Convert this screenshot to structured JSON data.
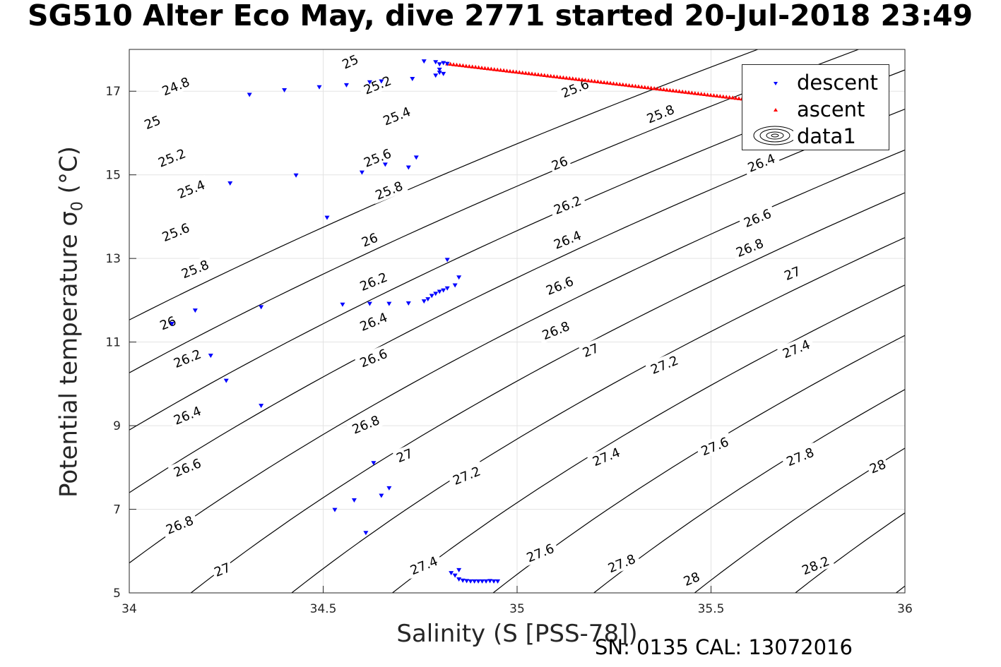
{
  "title": "SG510 Alter Eco May, dive 2771 started 20-Jul-2018 23:49",
  "footer": "SN: 0135  CAL: 13072016",
  "colors": {
    "descent": "#0000ff",
    "ascent": "#ff0000",
    "contour": "#000000",
    "grid": "#e3e3e3"
  },
  "chart_data": {
    "type": "scatter",
    "title": "SG510 Alter Eco May, dive 2771 started 20-Jul-2018 23:49",
    "xlabel": "Salinity (S [PSS-78])",
    "ylabel": "Potential temperature σ",
    "ylabel_subscript": "0",
    "ylabel_unit": "(°C)",
    "xlim": [
      34,
      36
    ],
    "ylim": [
      5,
      18
    ],
    "xticks": [
      "34",
      "34.5",
      "35",
      "35.5",
      "36"
    ],
    "yticks": [
      "5",
      "7",
      "9",
      "11",
      "13",
      "15",
      "17"
    ],
    "grid": true,
    "legend_position": "top-right",
    "legend": [
      "descent",
      "ascent",
      "data1"
    ],
    "series": [
      {
        "name": "descent",
        "marker": "downward-triangle",
        "color": "#0000ff",
        "points": [
          [
            34.79,
            17.7
          ],
          [
            34.81,
            17.68
          ],
          [
            34.82,
            17.66
          ],
          [
            34.76,
            17.72
          ],
          [
            34.8,
            17.65
          ],
          [
            34.8,
            17.52
          ],
          [
            34.8,
            17.45
          ],
          [
            34.79,
            17.38
          ],
          [
            34.81,
            17.42
          ],
          [
            34.73,
            17.3
          ],
          [
            34.65,
            17.24
          ],
          [
            34.62,
            17.22
          ],
          [
            34.56,
            17.15
          ],
          [
            34.49,
            17.1
          ],
          [
            34.4,
            17.03
          ],
          [
            34.31,
            16.92
          ],
          [
            34.74,
            15.42
          ],
          [
            34.66,
            15.25
          ],
          [
            34.72,
            15.18
          ],
          [
            34.6,
            15.06
          ],
          [
            34.43,
            14.99
          ],
          [
            34.26,
            14.8
          ],
          [
            34.51,
            13.98
          ],
          [
            34.82,
            12.97
          ],
          [
            34.85,
            12.55
          ],
          [
            34.84,
            12.36
          ],
          [
            34.82,
            12.29
          ],
          [
            34.81,
            12.24
          ],
          [
            34.8,
            12.21
          ],
          [
            34.79,
            12.16
          ],
          [
            34.78,
            12.11
          ],
          [
            34.77,
            12.03
          ],
          [
            34.76,
            11.98
          ],
          [
            34.72,
            11.93
          ],
          [
            34.67,
            11.92
          ],
          [
            34.62,
            11.92
          ],
          [
            34.55,
            11.9
          ],
          [
            34.34,
            11.84
          ],
          [
            34.17,
            11.76
          ],
          [
            34.11,
            11.44
          ],
          [
            34.21,
            10.68
          ],
          [
            34.25,
            10.08
          ],
          [
            34.34,
            9.48
          ],
          [
            34.63,
            8.11
          ],
          [
            34.67,
            7.51
          ],
          [
            34.65,
            7.33
          ],
          [
            34.58,
            7.22
          ],
          [
            34.53,
            6.99
          ],
          [
            34.61,
            6.44
          ],
          [
            34.85,
            5.55
          ],
          [
            34.83,
            5.48
          ],
          [
            34.84,
            5.42
          ],
          [
            34.85,
            5.33
          ],
          [
            34.86,
            5.3
          ],
          [
            34.87,
            5.29
          ],
          [
            34.88,
            5.28
          ],
          [
            34.89,
            5.28
          ],
          [
            34.9,
            5.28
          ],
          [
            34.91,
            5.28
          ],
          [
            34.92,
            5.28
          ],
          [
            34.93,
            5.29
          ],
          [
            34.94,
            5.28
          ],
          [
            34.95,
            5.28
          ]
        ]
      },
      {
        "name": "ascent",
        "marker": "upward-triangle",
        "color": "#ff0000",
        "x_range": [
          34.82,
          35.58
        ],
        "y_range": [
          17.66,
          16.82
        ],
        "count": 95
      },
      {
        "name": "data1",
        "type": "contour",
        "color": "#000000",
        "levels": [
          24.8,
          25,
          25.2,
          25.4,
          25.6,
          25.8,
          26,
          26.2,
          26.4,
          26.6,
          26.8,
          27,
          27.2,
          27.4,
          27.6,
          27.8,
          28,
          28.2
        ]
      }
    ],
    "contour_labels": [
      {
        "text": "25",
        "x": 34.57,
        "y": 17.7,
        "angle": -24
      },
      {
        "text": "24.8",
        "x": 34.12,
        "y": 17.11,
        "angle": -22
      },
      {
        "text": "25.2",
        "x": 34.64,
        "y": 17.14,
        "angle": -22
      },
      {
        "text": "25",
        "x": 34.06,
        "y": 16.25,
        "angle": -22
      },
      {
        "text": "25.4",
        "x": 34.69,
        "y": 16.4,
        "angle": -22
      },
      {
        "text": "25.6",
        "x": 35.15,
        "y": 17.06,
        "angle": -22
      },
      {
        "text": "25.8",
        "x": 35.37,
        "y": 16.45,
        "angle": -22
      },
      {
        "text": "25.2",
        "x": 34.11,
        "y": 15.4,
        "angle": -22
      },
      {
        "text": "25.6",
        "x": 34.64,
        "y": 15.4,
        "angle": -22
      },
      {
        "text": "25.8",
        "x": 34.67,
        "y": 14.62,
        "angle": -22
      },
      {
        "text": "26",
        "x": 35.11,
        "y": 15.27,
        "angle": -22
      },
      {
        "text": "26.2",
        "x": 35.13,
        "y": 14.27,
        "angle": -22
      },
      {
        "text": "26.4",
        "x": 35.63,
        "y": 15.28,
        "angle": -22
      },
      {
        "text": "25.4",
        "x": 34.16,
        "y": 14.65,
        "angle": -22
      },
      {
        "text": "26.6",
        "x": 35.62,
        "y": 13.96,
        "angle": -22
      },
      {
        "text": "25.6",
        "x": 34.12,
        "y": 13.62,
        "angle": -22
      },
      {
        "text": "26",
        "x": 34.62,
        "y": 13.44,
        "angle": -22
      },
      {
        "text": "26.4",
        "x": 35.13,
        "y": 13.44,
        "angle": -22
      },
      {
        "text": "26.8",
        "x": 35.6,
        "y": 13.25,
        "angle": -22
      },
      {
        "text": "25.8",
        "x": 34.17,
        "y": 12.74,
        "angle": -22
      },
      {
        "text": "26.2",
        "x": 34.63,
        "y": 12.44,
        "angle": -22
      },
      {
        "text": "26.6",
        "x": 35.11,
        "y": 12.34,
        "angle": -22
      },
      {
        "text": "27",
        "x": 35.71,
        "y": 12.64,
        "angle": -22
      },
      {
        "text": "27.2",
        "x": 36.0,
        "y": 12.27,
        "angle": -22
      },
      {
        "text": "26",
        "x": 34.1,
        "y": 11.45,
        "angle": -22
      },
      {
        "text": "26.4",
        "x": 34.63,
        "y": 11.48,
        "angle": -22
      },
      {
        "text": "26.8",
        "x": 35.1,
        "y": 11.27,
        "angle": -22
      },
      {
        "text": "26.2",
        "x": 34.15,
        "y": 10.6,
        "angle": -22
      },
      {
        "text": "26.6",
        "x": 34.63,
        "y": 10.61,
        "angle": -22
      },
      {
        "text": "27",
        "x": 35.19,
        "y": 10.8,
        "angle": -22
      },
      {
        "text": "27.2",
        "x": 35.38,
        "y": 10.45,
        "angle": -22
      },
      {
        "text": "27.4",
        "x": 35.72,
        "y": 10.83,
        "angle": -22
      },
      {
        "text": "26.4",
        "x": 34.15,
        "y": 9.24,
        "angle": -22
      },
      {
        "text": "26.8",
        "x": 34.61,
        "y": 9.02,
        "angle": -22
      },
      {
        "text": "27",
        "x": 34.71,
        "y": 8.28,
        "angle": -22
      },
      {
        "text": "27.6",
        "x": 35.51,
        "y": 8.5,
        "angle": -22
      },
      {
        "text": "27.8",
        "x": 35.73,
        "y": 8.25,
        "angle": -22
      },
      {
        "text": "28",
        "x": 35.93,
        "y": 8.02,
        "angle": -22
      },
      {
        "text": "27.4",
        "x": 35.23,
        "y": 8.25,
        "angle": -22
      },
      {
        "text": "26.6",
        "x": 34.15,
        "y": 7.99,
        "angle": -22
      },
      {
        "text": "27.2",
        "x": 34.87,
        "y": 7.8,
        "angle": -22
      },
      {
        "text": "26.8",
        "x": 34.13,
        "y": 6.62,
        "angle": -22
      },
      {
        "text": "27",
        "x": 34.24,
        "y": 5.55,
        "angle": -22
      },
      {
        "text": "27.4",
        "x": 34.76,
        "y": 5.65,
        "angle": -22
      },
      {
        "text": "27.6",
        "x": 35.06,
        "y": 5.95,
        "angle": -22
      },
      {
        "text": "27.8",
        "x": 35.27,
        "y": 5.7,
        "angle": -22
      },
      {
        "text": "28",
        "x": 35.45,
        "y": 5.33,
        "angle": -22
      },
      {
        "text": "28.2",
        "x": 35.77,
        "y": 5.65,
        "angle": -22
      }
    ]
  }
}
